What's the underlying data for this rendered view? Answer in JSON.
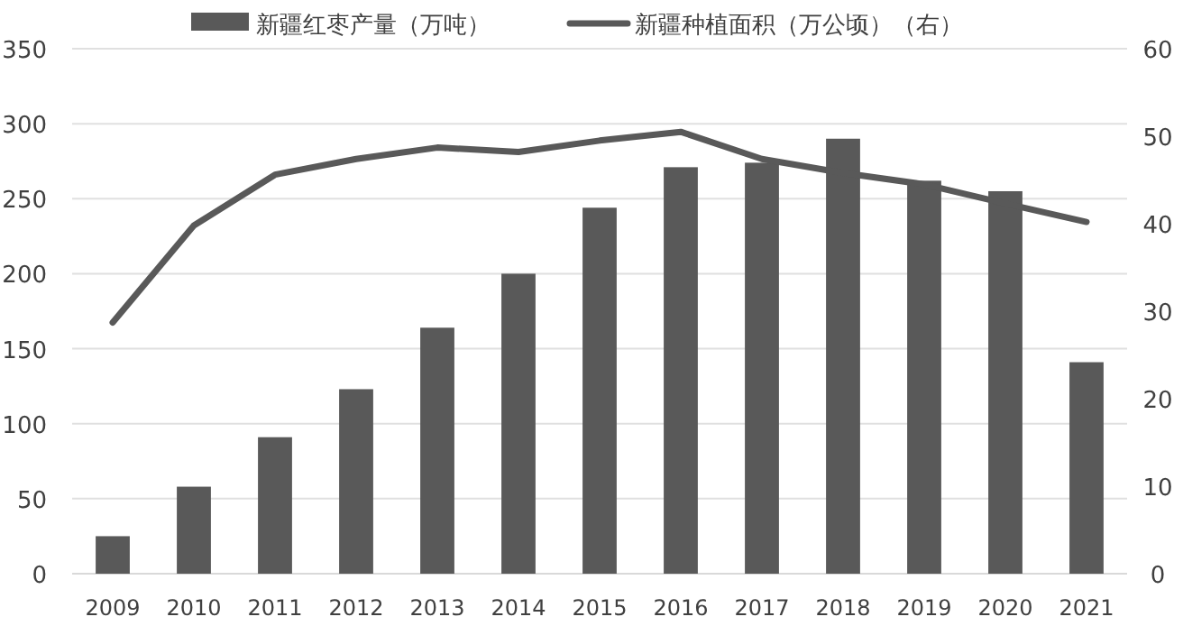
{
  "chart_data": {
    "type": "bar",
    "categories": [
      "2009",
      "2010",
      "2011",
      "2012",
      "2013",
      "2014",
      "2015",
      "2016",
      "2017",
      "2018",
      "2019",
      "2020",
      "2021"
    ],
    "series": [
      {
        "name": "新疆红枣产量（万吨）",
        "color": "#595959",
        "values": [
          25,
          58,
          91,
          123,
          164,
          200,
          244,
          271,
          274,
          290,
          262,
          255,
          141
        ]
      },
      {
        "name": "新疆种植面积（万公顷）（右）",
        "type": "line",
        "axis": "y2",
        "color": "#595959",
        "values": [
          28.7,
          39.8,
          45.6,
          47.4,
          48.7,
          48.2,
          49.5,
          50.5,
          47.4,
          45.8,
          44.5,
          42.3,
          40.2
        ]
      }
    ],
    "ylim": [
      0,
      350
    ],
    "yticks": [
      0,
      50,
      100,
      150,
      200,
      250,
      300,
      350
    ],
    "y2lim": [
      0,
      60
    ],
    "y2ticks": [
      0,
      10,
      20,
      30,
      40,
      50,
      60
    ],
    "grid": "y",
    "legend": "top",
    "marker": "none",
    "line_style": "solid"
  }
}
